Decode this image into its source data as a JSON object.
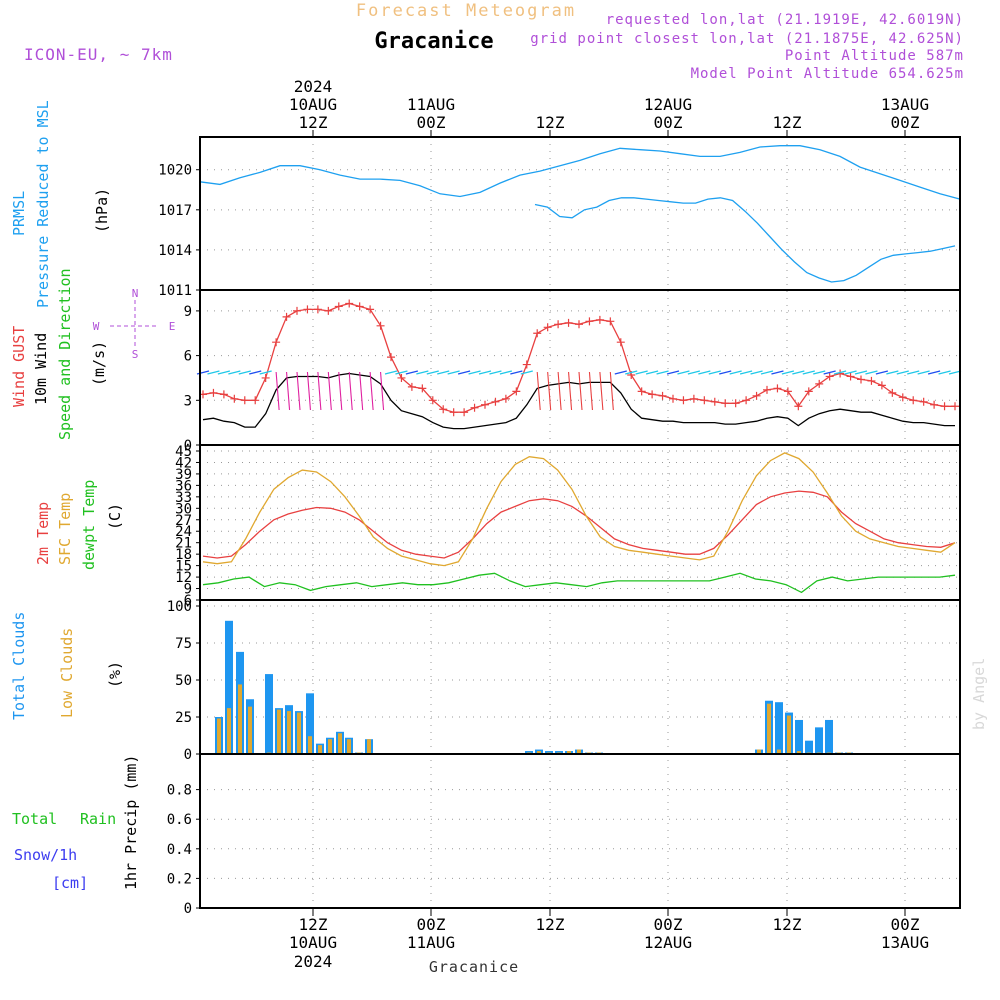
{
  "header": {
    "forecast_label": "Forecast Meteogram",
    "location": "Gracanice",
    "requested": "requested lon,lat (21.1919E, 42.6019N)",
    "grid_point": "grid point closest lon,lat (21.1875E, 42.625N)",
    "point_altitude": "Point Altitude 587m",
    "model_altitude": "Model Point Altitude 654.625m",
    "model": "ICON-EU, ~ 7km"
  },
  "top_time_axis": [
    {
      "line1": "2024",
      "line2": "10AUG",
      "line3": "12Z"
    },
    {
      "line1": "",
      "line2": "11AUG",
      "line3": "00Z"
    },
    {
      "line1": "",
      "line2": "",
      "line3": "12Z"
    },
    {
      "line1": "",
      "line2": "12AUG",
      "line3": "00Z"
    },
    {
      "line1": "",
      "line2": "",
      "line3": "12Z"
    },
    {
      "line1": "",
      "line2": "13AUG",
      "line3": "00Z"
    }
  ],
  "bottom_time_axis": [
    {
      "line1": "12Z",
      "line2": "10AUG",
      "line3": "2024"
    },
    {
      "line1": "00Z",
      "line2": "11AUG",
      "line3": ""
    },
    {
      "line1": "12Z",
      "line2": "",
      "line3": ""
    },
    {
      "line1": "00Z",
      "line2": "12AUG",
      "line3": ""
    },
    {
      "line1": "12Z",
      "line2": "",
      "line3": ""
    },
    {
      "line1": "00Z",
      "line2": "13AUG",
      "line3": ""
    }
  ],
  "panel_labels": {
    "pressure": {
      "l1": "PRMSL",
      "l2": "Pressure Reduced to MSL",
      "unit": "(hPa)"
    },
    "wind": {
      "gust": "Wind GUST",
      "wind10": "10m Wind",
      "dir": "Speed and Direction",
      "unit": "(m/s)",
      "compass_n": "N",
      "compass_s": "S",
      "compass_w": "W",
      "compass_e": "E"
    },
    "temp": {
      "t2m": "2m Temp",
      "sfc": "SFC Temp",
      "dew": "dewpt Temp",
      "unit": "(C)"
    },
    "cloud": {
      "total": "Total Clouds",
      "low": "Low Clouds",
      "unit": "(%)"
    },
    "precip": {
      "rain_a": "Total",
      "rain_b": "Rain",
      "snow": "Snow/1h",
      "snow_unit": "[cm]",
      "axis": "1hr Precip (mm)"
    }
  },
  "watermark": "by Angel",
  "footer": "Gracanice",
  "colors": {
    "pressure": "#1ea0f0",
    "gust": "#e84040",
    "wind": "#000000",
    "t2m": "#e84040",
    "sfc": "#e0a830",
    "dew": "#20c020",
    "total_cloud": "#1e96f0",
    "low_cloud": "#e0a830",
    "rain": "#20c020",
    "snow": "#3c3cf0",
    "purple": "#b04fd8"
  },
  "chart_data": [
    {
      "type": "line",
      "name": "pressure",
      "x_hours": [
        0,
        2,
        4,
        6,
        8,
        10,
        12,
        14,
        16,
        18,
        20,
        22,
        24,
        26,
        28,
        30,
        32,
        34,
        36,
        38,
        40,
        42,
        44,
        46,
        48,
        50,
        52,
        54,
        56,
        58,
        60,
        62,
        64,
        66,
        68,
        70,
        72,
        74,
        76
      ],
      "series": [
        {
          "name": "PRMSL",
          "values": [
            1019.1,
            1018.9,
            1019.4,
            1019.8,
            1020.3,
            1020.3,
            1020.0,
            1019.6,
            1019.3,
            1019.3,
            1019.2,
            1018.8,
            1018.2,
            1018.0,
            1018.3,
            1019.0,
            1019.6,
            1019.9,
            1020.3,
            1020.7,
            1021.2,
            1021.6,
            1021.5,
            1021.4,
            1021.2,
            1021.0,
            1021.0,
            1021.3,
            1021.7,
            1021.8,
            1021.8,
            1021.5,
            1021.0,
            1020.2,
            1019.7,
            1019.2,
            1018.7,
            1018.2,
            1017.8
          ]
        }
      ],
      "ylim": [
        1011,
        1022
      ],
      "yticks": [
        1011,
        1014,
        1017,
        1020
      ]
    },
    {
      "type": "line",
      "name": "wind",
      "series": [
        {
          "name": "Wind GUST",
          "values": [
            3.4,
            3.5,
            3.4,
            3.1,
            3.0,
            3.0,
            4.5,
            6.9,
            8.6,
            9.0,
            9.1,
            9.1,
            9.0,
            9.3,
            9.5,
            9.3,
            9.1,
            8.0,
            5.9,
            4.5,
            3.9,
            3.8,
            3.0,
            2.4,
            2.2,
            2.2,
            2.5,
            2.7,
            2.9,
            3.1,
            3.6,
            5.4,
            7.5,
            7.9,
            8.1,
            8.2,
            8.1,
            8.3,
            8.4,
            8.3,
            6.9,
            4.7,
            3.6,
            3.4,
            3.3,
            3.1,
            3.0,
            3.1,
            3.0,
            2.9,
            2.8,
            2.8,
            3.0,
            3.3,
            3.7,
            3.8,
            3.6,
            2.6,
            3.6,
            4.1,
            4.6,
            4.8,
            4.6,
            4.4,
            4.3,
            4.0,
            3.5,
            3.2,
            3.0,
            2.9,
            2.7,
            2.6,
            2.6
          ]
        },
        {
          "name": "10m Wind",
          "values": [
            1.7,
            1.8,
            1.6,
            1.5,
            1.2,
            1.2,
            2.1,
            3.7,
            4.5,
            4.6,
            4.6,
            4.6,
            4.5,
            4.7,
            4.8,
            4.7,
            4.6,
            4.1,
            3.0,
            2.3,
            2.1,
            1.9,
            1.5,
            1.2,
            1.1,
            1.1,
            1.2,
            1.3,
            1.4,
            1.5,
            1.8,
            2.7,
            3.8,
            4.0,
            4.1,
            4.2,
            4.1,
            4.2,
            4.2,
            4.2,
            3.5,
            2.4,
            1.8,
            1.7,
            1.6,
            1.6,
            1.5,
            1.5,
            1.5,
            1.5,
            1.4,
            1.4,
            1.5,
            1.6,
            1.8,
            1.9,
            1.8,
            1.3,
            1.8,
            2.1,
            2.3,
            2.4,
            2.3,
            2.2,
            2.2,
            2.0,
            1.8,
            1.6,
            1.5,
            1.5,
            1.4,
            1.3,
            1.3
          ]
        }
      ],
      "ylim": [
        0,
        10
      ],
      "yticks": [
        0,
        3,
        6,
        9
      ]
    },
    {
      "type": "line",
      "name": "temperature",
      "series": [
        {
          "name": "2m Temp",
          "values": [
            17.5,
            17.0,
            17.5,
            20.5,
            24.0,
            27.0,
            28.5,
            29.5,
            30.2,
            30.0,
            29.0,
            27.0,
            24.0,
            21.0,
            19.0,
            18.0,
            17.5,
            17.0,
            18.5,
            22.0,
            26.0,
            29.0,
            30.5,
            32.0,
            32.5,
            32.0,
            30.5,
            28.0,
            25.0,
            22.0,
            20.5,
            19.5,
            19.0,
            18.5,
            18.0,
            18.0,
            19.5,
            23.0,
            27.0,
            31.0,
            33.0,
            34.0,
            34.5,
            34.2,
            33.0,
            29.0,
            26.0,
            24.0,
            22.0,
            21.0,
            20.5,
            20.0,
            19.8,
            21.0
          ]
        },
        {
          "name": "SFC Temp",
          "values": [
            16.0,
            15.5,
            16.0,
            22.0,
            29.0,
            35.0,
            38.0,
            40.0,
            39.5,
            37.0,
            33.0,
            28.0,
            22.5,
            19.5,
            17.5,
            16.5,
            15.5,
            15.0,
            16.0,
            22.0,
            30.0,
            37.0,
            41.5,
            43.5,
            43.0,
            40.0,
            35.0,
            28.0,
            22.5,
            20.0,
            19.0,
            18.5,
            18.0,
            17.5,
            17.0,
            16.5,
            17.5,
            24.0,
            32.0,
            38.5,
            42.5,
            44.5,
            43.0,
            39.5,
            34.0,
            28.0,
            24.0,
            22.0,
            21.0,
            20.0,
            19.5,
            19.0,
            18.5,
            21.0
          ]
        },
        {
          "name": "dewpt Temp",
          "values": [
            10.0,
            10.5,
            11.5,
            12.0,
            9.5,
            10.5,
            10.0,
            8.5,
            9.5,
            10.0,
            10.5,
            9.5,
            10.0,
            10.5,
            10.0,
            10.0,
            10.5,
            11.5,
            12.5,
            13.0,
            11.0,
            9.5,
            10.0,
            10.5,
            10.0,
            9.5,
            10.5,
            11.0,
            11.0,
            11.0,
            11.0,
            11.0,
            11.0,
            11.0,
            12.0,
            13.0,
            11.5,
            11.0,
            10.0,
            8.0,
            11.0,
            12.0,
            11.0,
            11.5,
            12.0,
            12.0,
            12.0,
            12.0,
            12.0,
            12.5
          ]
        }
      ],
      "ylim": [
        6,
        45
      ],
      "yticks": [
        6,
        9,
        12,
        15,
        18,
        21,
        24,
        27,
        30,
        33,
        36,
        39,
        42,
        45
      ]
    },
    {
      "type": "bar",
      "name": "clouds",
      "x_hours": [
        3,
        5,
        6,
        7,
        11,
        12,
        13,
        14,
        15,
        16,
        17,
        18,
        19,
        20,
        21,
        28,
        29,
        30,
        31,
        32,
        33,
        34,
        35,
        49,
        50,
        51,
        52,
        53,
        54,
        55,
        56,
        57,
        58
      ],
      "series": [
        {
          "name": "Total Clouds",
          "values": [
            25,
            90,
            69,
            37,
            54,
            31,
            33,
            29,
            41,
            7,
            11,
            15,
            11,
            1,
            10,
            2,
            3,
            2,
            2,
            2,
            3,
            1,
            1,
            3,
            36,
            35,
            28,
            23,
            9,
            18,
            23,
            1,
            1
          ]
        },
        {
          "name": "Low Clouds",
          "values": [
            24,
            31,
            47,
            32,
            1,
            30,
            29,
            28,
            12,
            6,
            10,
            14,
            10,
            1,
            10,
            1,
            2,
            1,
            1,
            2,
            3,
            1,
            1,
            3,
            34,
            3,
            26,
            2,
            1,
            1,
            1,
            1,
            1
          ]
        }
      ],
      "ylim": [
        0,
        100
      ],
      "yticks": [
        0,
        25,
        50,
        75,
        100
      ]
    },
    {
      "type": "bar",
      "name": "precipitation",
      "series": [
        {
          "name": "Total Rain",
          "values": []
        },
        {
          "name": "Snow/1h",
          "values": []
        }
      ],
      "ylim": [
        0,
        1
      ],
      "yticks": [
        0,
        0.2,
        0.4,
        0.6,
        0.8
      ]
    }
  ]
}
